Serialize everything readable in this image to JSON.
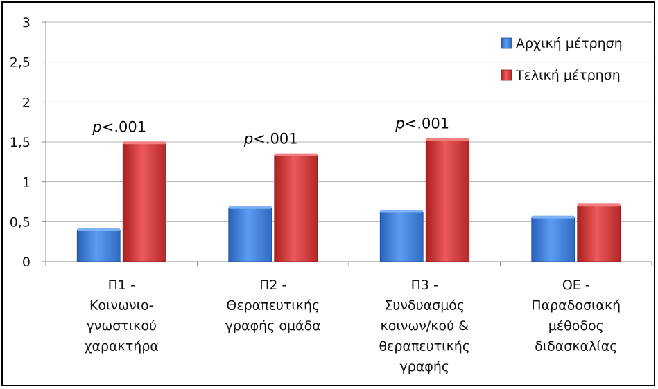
{
  "chart_data": {
    "type": "bar",
    "categories": [
      [
        "Π1 -",
        "Κοινωνιο-",
        "γνωστικού",
        "χαρακτήρα"
      ],
      [
        "Π2 -",
        "Θεραπευτικής",
        "γραφής ομάδα"
      ],
      [
        "Π3 -",
        "Συνδυασμός",
        "κοινων/κού &",
        "θεραπευτικής",
        "γραφής"
      ],
      [
        "ΟΕ -",
        "Παραδοσιακή",
        "μέθοδος",
        "διδασκαλίας"
      ]
    ],
    "series": [
      {
        "name": "Αρχική μέτρηση",
        "values": [
          0.39,
          0.67,
          0.62,
          0.55
        ],
        "color": "#3f7fd6"
      },
      {
        "name": "Τελική μέτρηση",
        "values": [
          1.48,
          1.33,
          1.52,
          0.7
        ],
        "color": "#cf3434"
      }
    ],
    "ylim": [
      0,
      3
    ],
    "yticks": [
      "0",
      "0,5",
      "1",
      "1,5",
      "2",
      "2,5",
      "3"
    ],
    "ytick_values": [
      0,
      0.5,
      1,
      1.5,
      2,
      2.5,
      3
    ],
    "annotations": [
      "p<.001",
      "p<.001",
      "p<.001",
      ""
    ],
    "grid": true,
    "legend_position": "top-right"
  }
}
